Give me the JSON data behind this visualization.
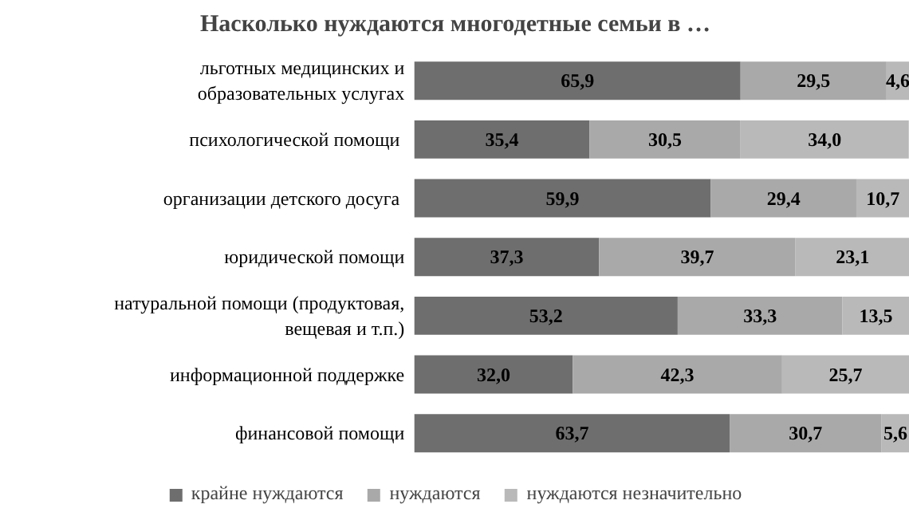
{
  "chart_data": {
    "type": "bar",
    "orientation": "horizontal",
    "stacked": true,
    "title": "Насколько нуждаются многодетные семьи в …",
    "categories": [
      "льготных медицинских и\nобразовательных услугах",
      "психологической  помощи",
      "организации детского  досуга",
      "юридической помощи",
      "натуральной помощи (продуктовая,\nвещевая и т.п.)",
      "информационной поддержке",
      "финансовой помощи"
    ],
    "series": [
      {
        "name": "крайне нуждаются",
        "color": "#6e6e6e",
        "values": [
          65.9,
          35.4,
          59.9,
          37.3,
          53.2,
          32.0,
          63.7
        ],
        "value_labels": [
          "65,9",
          "35,4",
          "59,9",
          "37,3",
          "53,2",
          "32,0",
          "63,7"
        ]
      },
      {
        "name": "нуждаются",
        "color": "#a9a9a9",
        "values": [
          29.5,
          30.5,
          29.4,
          39.7,
          33.3,
          42.3,
          30.7
        ],
        "value_labels": [
          "29,5",
          "30,5",
          "29,4",
          "39,7",
          "33,3",
          "42,3",
          "30,7"
        ]
      },
      {
        "name": "нуждаются незначительно",
        "color": "#b9b9b9",
        "values": [
          4.6,
          34.0,
          10.7,
          23.1,
          13.5,
          25.7,
          5.6
        ],
        "value_labels": [
          "4,6",
          "34,0",
          "10,7",
          "23,1",
          "13,5",
          "25,7",
          "5,6"
        ]
      }
    ],
    "legend": "bottom",
    "grid": false
  }
}
